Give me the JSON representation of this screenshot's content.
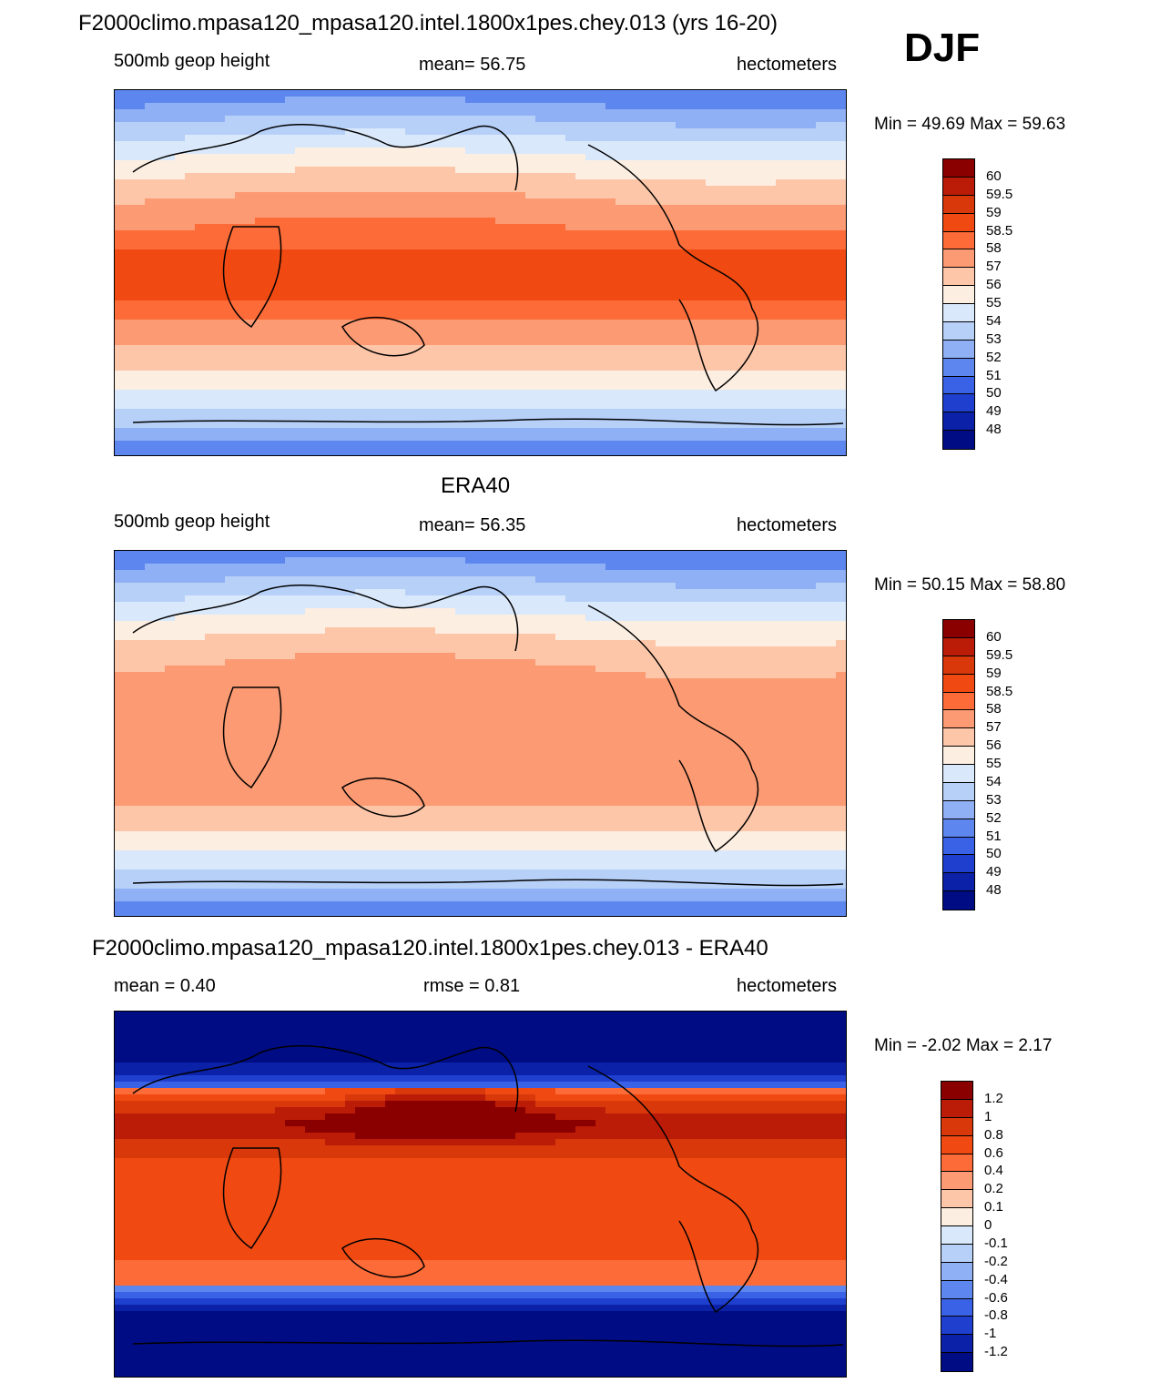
{
  "season": "DJF",
  "colors": {
    "full": [
      "#8a0000",
      "#bb1c08",
      "#d8380a",
      "#f04a12",
      "#fc6b38",
      "#fc9a73",
      "#fdc6a8",
      "#fdeee2",
      "#d9e9fb",
      "#b6d0f8",
      "#8fb0f4",
      "#5d87ee",
      "#3a62e6",
      "#1f40cf",
      "#0a21a8",
      "#000c84"
    ],
    "diff": [
      "#8a0000",
      "#bb1c08",
      "#d8380a",
      "#f04a12",
      "#fc6b38",
      "#fc9a73",
      "#fdc6a8",
      "#fdeee2",
      "#d9e9fb",
      "#b6d0f8",
      "#8fb0f4",
      "#5d87ee",
      "#3a62e6",
      "#1f40cf",
      "#0a21a8",
      "#000c84"
    ]
  },
  "panels": [
    {
      "title": "F2000climo.mpasa120_mpasa120.intel.1800x1pes.chey.013 (yrs 16-20)",
      "left": "500mb geop height",
      "center": "mean=  56.75",
      "right": "hectometers",
      "minmax": "Min =  49.69 Max =  59.63",
      "levels": [
        "60",
        "59.5",
        "59",
        "58.5",
        "58",
        "57",
        "56",
        "55",
        "54",
        "53",
        "52",
        "51",
        "50",
        "49",
        "48"
      ]
    },
    {
      "title": "ERA40",
      "left": "500mb geop height",
      "center": "mean=  56.35",
      "right": "hectometers",
      "minmax": "Min =  50.15 Max =  58.80",
      "levels": [
        "60",
        "59.5",
        "59",
        "58.5",
        "58",
        "57",
        "56",
        "55",
        "54",
        "53",
        "52",
        "51",
        "50",
        "49",
        "48"
      ]
    },
    {
      "title": "F2000climo.mpasa120_mpasa120.intel.1800x1pes.chey.013 - ERA40",
      "left": "mean =   0.40",
      "center": "rmse =   0.81",
      "right": "hectometers",
      "minmax": "Min =  -2.02 Max =   2.17",
      "levels": [
        "1.2",
        "1",
        "0.8",
        "0.6",
        "0.4",
        "0.2",
        "0.1",
        "0",
        "-0.1",
        "-0.2",
        "-0.4",
        "-0.6",
        "-0.8",
        "-1",
        "-1.2"
      ]
    }
  ]
}
